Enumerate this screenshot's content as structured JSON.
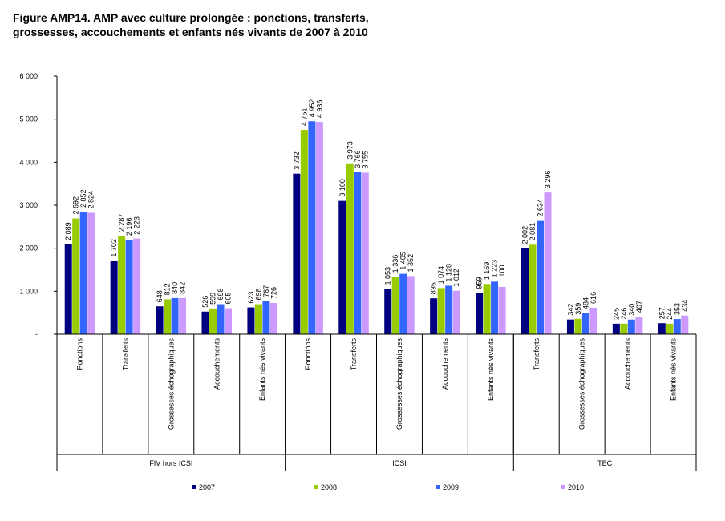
{
  "title_line1": "Figure AMP14. AMP avec culture prolongée : ponctions, transferts,",
  "title_line2": "grossesses, accouchements et enfants nés vivants de 2007 à 2010",
  "colors": {
    "2007": "#000080",
    "2008": "#99cc00",
    "2009": "#3366ff",
    "2010": "#cc99ff"
  },
  "chart_data": {
    "type": "bar",
    "title": "Figure AMP14. AMP avec culture prolongée : ponctions, transferts, grossesses, accouchements et enfants nés vivants de 2007 à 2010",
    "ylim": [
      0,
      6000
    ],
    "yticks": [
      {
        "value": 0,
        "label": "-"
      },
      {
        "value": 1000,
        "label": "1 000"
      },
      {
        "value": 2000,
        "label": "2 000"
      },
      {
        "value": 3000,
        "label": "3 000"
      },
      {
        "value": 4000,
        "label": "4 000"
      },
      {
        "value": 5000,
        "label": "5 000"
      },
      {
        "value": 6000,
        "label": "6 000"
      }
    ],
    "grid": false,
    "legend": "bottom",
    "groups": [
      {
        "name": "FIV hors ICSI",
        "categories": [
          "Ponctions",
          "Transferts",
          "Grossesses échographiques",
          "Accouchements",
          "Enfants nés vivants"
        ]
      },
      {
        "name": "ICSI",
        "categories": [
          "Ponctions",
          "Transferts",
          "Grossesses échographiques",
          "Accouchements",
          "Enfants nés vivants"
        ]
      },
      {
        "name": "TEC",
        "categories": [
          "Transferts",
          "Grossesses échographiques",
          "Accouchements",
          "Enfants nés vivants"
        ]
      }
    ],
    "series": [
      {
        "name": "2007",
        "values": [
          2089,
          1702,
          648,
          526,
          623,
          3732,
          3100,
          1053,
          835,
          959,
          2002,
          342,
          245,
          257
        ],
        "labels": [
          "2 089",
          "1 702",
          "648",
          "526",
          "623",
          "3 732",
          "3 100",
          "1 053",
          "835",
          "959",
          "2 002",
          "342",
          "245",
          "257"
        ]
      },
      {
        "name": "2008",
        "values": [
          2692,
          2287,
          812,
          599,
          698,
          4751,
          3973,
          1336,
          1074,
          1169,
          2081,
          359,
          246,
          244
        ],
        "labels": [
          "2 692",
          "2 287",
          "812",
          "599",
          "698",
          "4 751",
          "3 973",
          "1 336",
          "1 074",
          "1 169",
          "2 081",
          "359",
          "246",
          "244"
        ]
      },
      {
        "name": "2009",
        "values": [
          2852,
          2196,
          840,
          698,
          767,
          4952,
          3766,
          1405,
          1128,
          1223,
          2634,
          484,
          340,
          353
        ],
        "labels": [
          "2 852",
          "2 196",
          "840",
          "698",
          "767",
          "4 952",
          "3 766",
          "1 405",
          "1 128",
          "1 223",
          "2 634",
          "484",
          "340",
          "353"
        ]
      },
      {
        "name": "2010",
        "values": [
          2824,
          2223,
          842,
          605,
          726,
          4936,
          3755,
          1352,
          1012,
          1100,
          3296,
          616,
          407,
          434
        ],
        "labels": [
          "2 824",
          "2 223",
          "842",
          "605",
          "726",
          "4 936",
          "3 755",
          "1 352",
          "1 012",
          "1 100",
          "3 296",
          "616",
          "407",
          "434"
        ]
      }
    ]
  }
}
